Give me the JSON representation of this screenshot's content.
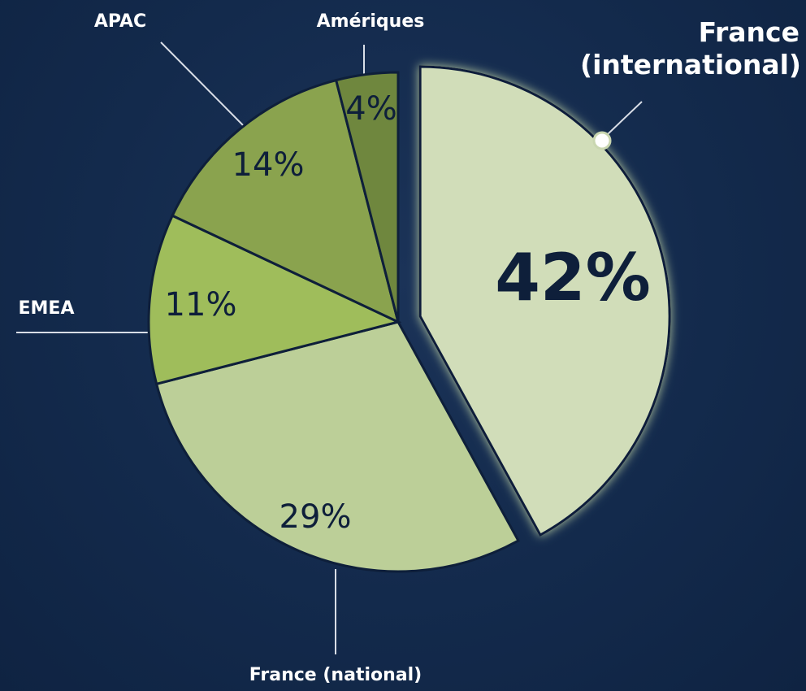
{
  "chart_data": {
    "type": "pie",
    "categories": [
      "France (international)",
      "France (national)",
      "EMEA",
      "APAC",
      "Amériques"
    ],
    "values": [
      42,
      29,
      11,
      14,
      4
    ],
    "value_labels": [
      "42%",
      "29%",
      "11%",
      "14%",
      "4%"
    ],
    "colors": [
      "#d1ddb9",
      "#bccf98",
      "#9fbd5b",
      "#8aa34e",
      "#6f873e"
    ]
  }
}
